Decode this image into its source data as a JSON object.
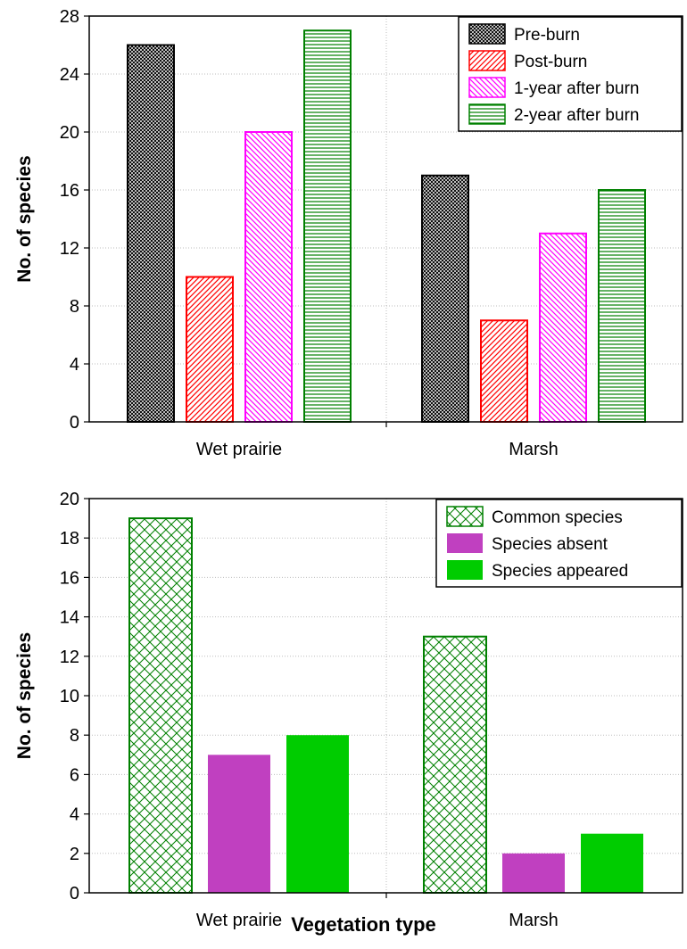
{
  "chart_data": [
    {
      "type": "bar",
      "categories": [
        "Wet prairie",
        "Marsh"
      ],
      "ylabel": "No. of species",
      "xlabel": "",
      "ylim": [
        0,
        28
      ],
      "yticks": [
        0,
        4,
        8,
        12,
        16,
        20,
        24,
        28
      ],
      "grid": true,
      "legend_position": "top-right",
      "series": [
        {
          "name": "Pre-burn",
          "values": [
            26,
            17
          ],
          "color": "#000000",
          "pattern": "dense-crosshatch"
        },
        {
          "name": "Post-burn",
          "values": [
            10,
            7
          ],
          "color": "#ff0000",
          "pattern": "diagonal-up"
        },
        {
          "name": "1-year after burn",
          "values": [
            20,
            13
          ],
          "color": "#ff00ff",
          "pattern": "diagonal-down"
        },
        {
          "name": "2-year after burn",
          "values": [
            27,
            16
          ],
          "color": "#008000",
          "pattern": "horizontal"
        }
      ]
    },
    {
      "type": "bar",
      "categories": [
        "Wet prairie",
        "Marsh"
      ],
      "ylabel": "No. of species",
      "xlabel": "Vegetation type",
      "ylim": [
        0,
        20
      ],
      "yticks": [
        0,
        2,
        4,
        6,
        8,
        10,
        12,
        14,
        16,
        18,
        20
      ],
      "grid": true,
      "legend_position": "top-right",
      "series": [
        {
          "name": "Common species",
          "values": [
            19,
            13
          ],
          "color": "#008000",
          "pattern": "crosshatch"
        },
        {
          "name": "Species absent",
          "values": [
            7,
            2
          ],
          "color": "#c040c0",
          "pattern": "solid"
        },
        {
          "name": "Species appeared",
          "values": [
            8,
            3
          ],
          "color": "#00cc00",
          "pattern": "solid"
        }
      ]
    }
  ]
}
